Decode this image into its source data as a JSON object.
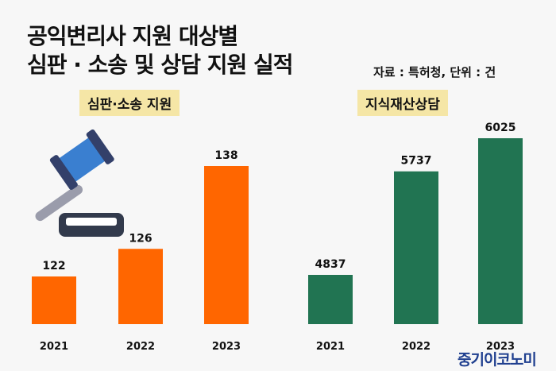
{
  "title_line1": "공익변리사 지원 대상별",
  "title_line2": "심판 · 소송 및 상담 지원 실적",
  "source": "자료 : 특허청, 단위 : 건",
  "brand": "중기이코노미",
  "chart_data": [
    {
      "type": "bar",
      "title": "심판·소송 지원",
      "categories": [
        "2021",
        "2022",
        "2023"
      ],
      "values": [
        122,
        126,
        138
      ],
      "color": "#ff6600"
    },
    {
      "type": "bar",
      "title": "지식재산상담",
      "categories": [
        "2021",
        "2022",
        "2023"
      ],
      "values": [
        4837,
        5737,
        6025
      ],
      "color": "#217452"
    }
  ]
}
